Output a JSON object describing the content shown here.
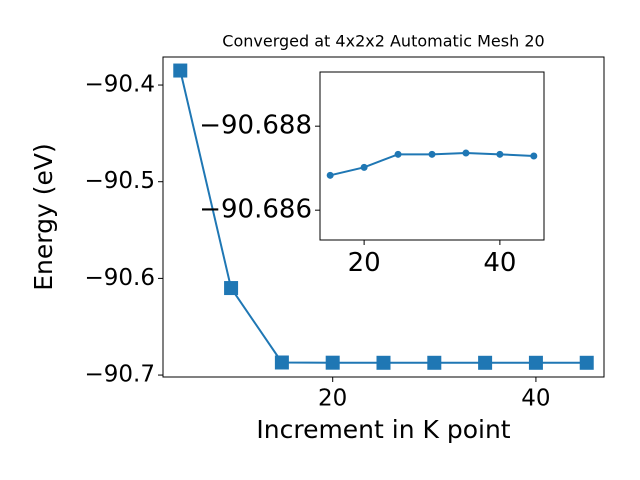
{
  "chart_data": [
    {
      "type": "line",
      "title": "Converged at 4x2x2 Automatic Mesh 20",
      "xlabel": "Increment in K point",
      "ylabel": "Energy (eV)",
      "x": [
        5,
        10,
        15,
        20,
        25,
        30,
        35,
        40,
        45
      ],
      "series": [
        {
          "color": "#1f77b4",
          "marker": "square",
          "values": [
            -90.385,
            -90.61,
            -90.687,
            -90.6872,
            -90.6873,
            -90.6873,
            -90.6873,
            -90.6873,
            -90.6873
          ]
        }
      ],
      "xlim": [
        3.3,
        46.7
      ],
      "ylim": [
        -90.702,
        -90.371
      ],
      "xticks": [
        20,
        40
      ],
      "yticks": [
        {
          "value": -90.4,
          "label": "−90.4"
        },
        {
          "value": -90.5,
          "label": "−90.5"
        },
        {
          "value": -90.6,
          "label": "−90.6"
        },
        {
          "value": -90.7,
          "label": "−90.7"
        }
      ]
    },
    {
      "type": "line",
      "x": [
        15,
        20,
        25,
        30,
        35,
        40,
        45
      ],
      "series": [
        {
          "color": "#1f77b4",
          "marker": "circle",
          "values": [
            -90.68683,
            -90.68702,
            -90.68733,
            -90.68733,
            -90.68736,
            -90.68733,
            -90.68729
          ]
        }
      ],
      "xlim": [
        13.5,
        46.5
      ],
      "ylim": [
        -90.68529,
        -90.68929
      ],
      "xticks": [
        20,
        40
      ],
      "yticks": [
        {
          "value": -90.688,
          "label": "−90.688"
        },
        {
          "value": -90.686,
          "label": "−90.686"
        }
      ]
    }
  ]
}
